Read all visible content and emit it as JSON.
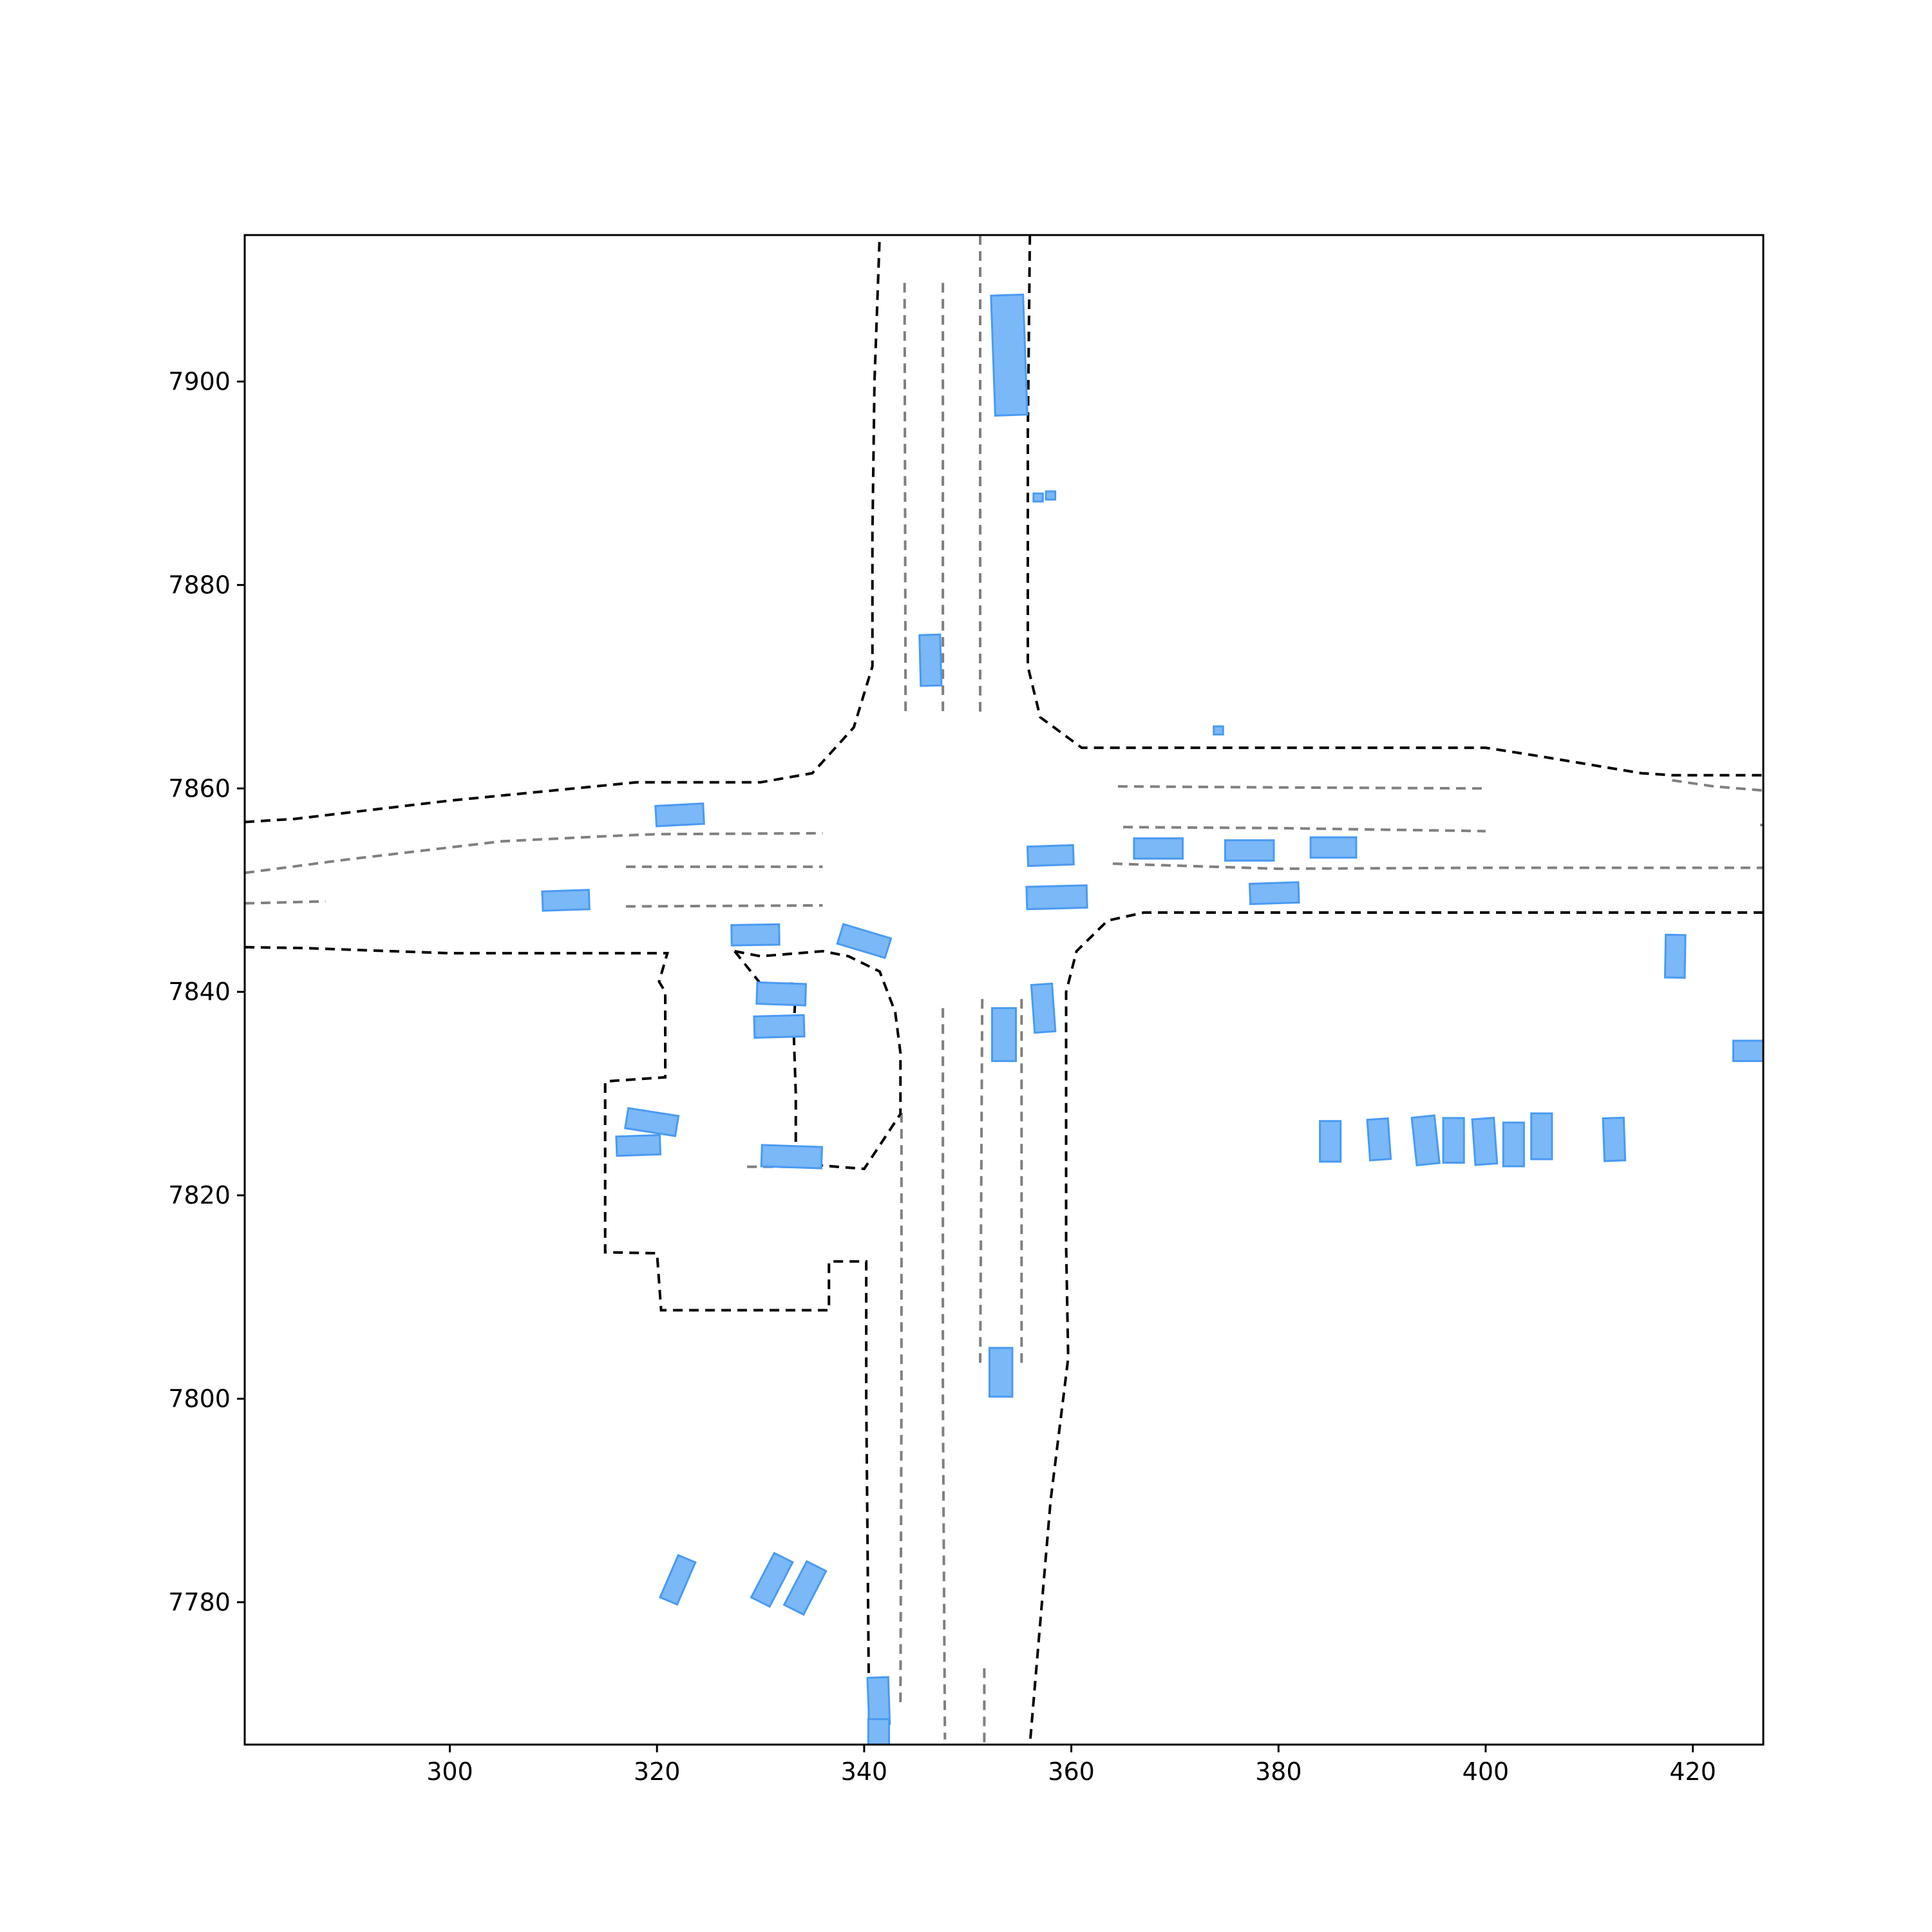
{
  "chart_data": {
    "type": "scatter",
    "title": "",
    "xlabel": "",
    "ylabel": "",
    "xlim": [
      280.2,
      426.8
    ],
    "ylim": [
      7766,
      7914.4
    ],
    "xticks": [
      300,
      320,
      340,
      360,
      380,
      400,
      420
    ],
    "yticks": [
      7780,
      7800,
      7820,
      7840,
      7860,
      7880,
      7900
    ],
    "xtick_labels": [
      "300",
      "320",
      "340",
      "360",
      "380",
      "400",
      "420"
    ],
    "ytick_labels": [
      "7780",
      "7800",
      "7820",
      "7840",
      "7860",
      "7880",
      "7900"
    ],
    "grid": false,
    "colors": {
      "road_edge": "#000000",
      "lane_divider": "#808080",
      "vehicle_fill": "#7ab8f7",
      "vehicle_stroke": "#4a9af2"
    },
    "road_edges": [
      [
        [
          280.2,
          7856.7
        ],
        [
          285,
          7857
        ],
        [
          300,
          7858.8
        ],
        [
          318,
          7860.6
        ],
        [
          330,
          7860.6
        ],
        [
          335,
          7861.5
        ],
        [
          339,
          7866
        ],
        [
          340.8,
          7872
        ],
        [
          340.8,
          7885
        ],
        [
          341,
          7900
        ],
        [
          341.5,
          7914.4
        ]
      ],
      [
        [
          356,
          7914.4
        ],
        [
          355.8,
          7895
        ],
        [
          355.8,
          7872
        ],
        [
          357,
          7867
        ],
        [
          361,
          7864
        ],
        [
          365,
          7864
        ],
        [
          380,
          7864
        ],
        [
          400,
          7864
        ],
        [
          405,
          7863.2
        ],
        [
          415,
          7861.5
        ],
        [
          418,
          7861.3
        ],
        [
          426.8,
          7861.3
        ]
      ],
      [
        [
          426.8,
          7847.8
        ],
        [
          400,
          7847.8
        ],
        [
          380,
          7847.8
        ],
        [
          367,
          7847.8
        ],
        [
          363.5,
          7847
        ],
        [
          360.5,
          7844
        ],
        [
          359.5,
          7840
        ],
        [
          359.5,
          7830
        ],
        [
          359.5,
          7815
        ],
        [
          359.7,
          7804
        ],
        [
          358,
          7790
        ],
        [
          356,
          7766
        ]
      ],
      [
        [
          280.2,
          7844.4
        ],
        [
          286,
          7844.3
        ],
        [
          300,
          7843.8
        ],
        [
          320,
          7843.8
        ],
        [
          321,
          7843.8
        ],
        [
          320.2,
          7841
        ],
        [
          320.8,
          7840
        ],
        [
          320.8,
          7836
        ],
        [
          320.8,
          7831.6
        ],
        [
          315,
          7831.2
        ],
        [
          315,
          7820
        ],
        [
          315,
          7814.4
        ],
        [
          320,
          7814.3
        ],
        [
          320.4,
          7808.7
        ],
        [
          330,
          7808.7
        ],
        [
          336.6,
          7808.7
        ],
        [
          336.6,
          7813.5
        ],
        [
          340.2,
          7813.5
        ],
        [
          340.2,
          7800
        ],
        [
          340.5,
          7766
        ]
      ],
      [
        [
          327.5,
          7844
        ],
        [
          330,
          7843.5
        ],
        [
          336,
          7844
        ],
        [
          338.5,
          7843.5
        ],
        [
          341.5,
          7842
        ],
        [
          343,
          7838
        ],
        [
          343.5,
          7834
        ],
        [
          343.5,
          7828
        ],
        [
          340,
          7822.6
        ],
        [
          335,
          7823
        ],
        [
          333.4,
          7823.2
        ],
        [
          333.4,
          7830
        ],
        [
          333.2,
          7836
        ],
        [
          333.4,
          7840.8
        ],
        [
          330,
          7840.8
        ],
        [
          327.5,
          7844
        ]
      ]
    ],
    "lane_dividers": [
      [
        [
          280.2,
          7851.7
        ],
        [
          290,
          7853
        ],
        [
          305,
          7854.8
        ],
        [
          315,
          7855.3
        ],
        [
          320,
          7855.5
        ],
        [
          336,
          7855.6
        ]
      ],
      [
        [
          280.2,
          7848.7
        ],
        [
          288,
          7848.9
        ]
      ],
      [
        [
          317,
          7852.3
        ],
        [
          336,
          7852.3
        ]
      ],
      [
        [
          317,
          7848.4
        ],
        [
          336,
          7848.5
        ]
      ],
      [
        [
          343.9,
          7909.7
        ],
        [
          344,
          7867
        ]
      ],
      [
        [
          347.6,
          7909.7
        ],
        [
          347.6,
          7867
        ]
      ],
      [
        [
          351.2,
          7914.4
        ],
        [
          351.2,
          7867
        ]
      ],
      [
        [
          364.5,
          7860.2
        ],
        [
          380,
          7860.1
        ],
        [
          400,
          7860
        ]
      ],
      [
        [
          365,
          7856.2
        ],
        [
          380,
          7856.1
        ],
        [
          400,
          7855.8
        ]
      ],
      [
        [
          364,
          7852.6
        ],
        [
          380,
          7852.1
        ],
        [
          400,
          7852.2
        ],
        [
          426.8,
          7852.2
        ]
      ],
      [
        [
          418,
          7860.8
        ],
        [
          422,
          7860.2
        ],
        [
          426.8,
          7859.8
        ]
      ],
      [
        [
          426.5,
          7856.4
        ],
        [
          426.8,
          7856.4
        ]
      ],
      [
        [
          347.6,
          7838.4
        ],
        [
          347.6,
          7800
        ],
        [
          347.8,
          7766.5
        ]
      ],
      [
        [
          351.4,
          7839.3
        ],
        [
          351.3,
          7820
        ],
        [
          351.2,
          7803
        ]
      ],
      [
        [
          355.2,
          7839.3
        ],
        [
          355.2,
          7820
        ],
        [
          355.2,
          7803.5
        ]
      ],
      [
        [
          343.6,
          7828.1
        ],
        [
          343.6,
          7800
        ],
        [
          343.5,
          7769.8
        ]
      ],
      [
        [
          351.6,
          7773.5
        ],
        [
          351.6,
          7766
        ]
      ],
      [
        [
          328.7,
          7822.8
        ],
        [
          333.5,
          7822.8
        ]
      ]
    ],
    "vehicles": [
      {
        "x": 354,
        "y": 7902.6,
        "length": 11.8,
        "width": 3.1,
        "heading": 92
      },
      {
        "x": 356.8,
        "y": 7888.6,
        "length": 0.9,
        "width": 0.8,
        "heading": 0
      },
      {
        "x": 358,
        "y": 7888.8,
        "length": 0.9,
        "width": 0.8,
        "heading": 0
      },
      {
        "x": 346.4,
        "y": 7872.6,
        "length": 5,
        "width": 2,
        "heading": 91.5
      },
      {
        "x": 374.2,
        "y": 7865.7,
        "length": 0.9,
        "width": 0.8,
        "heading": 0
      },
      {
        "x": 322.2,
        "y": 7857.4,
        "length": 4.6,
        "width": 2,
        "heading": 3
      },
      {
        "x": 358,
        "y": 7853.4,
        "length": 4.4,
        "width": 1.9,
        "heading": 2
      },
      {
        "x": 368.4,
        "y": 7854.1,
        "length": 4.7,
        "width": 2,
        "heading": 0
      },
      {
        "x": 377.2,
        "y": 7853.9,
        "length": 4.7,
        "width": 2,
        "heading": 0
      },
      {
        "x": 385.3,
        "y": 7854.2,
        "length": 4.4,
        "width": 2,
        "heading": 0
      },
      {
        "x": 358.6,
        "y": 7849.3,
        "length": 5.8,
        "width": 2.2,
        "heading": 1.5
      },
      {
        "x": 379.6,
        "y": 7849.7,
        "length": 4.7,
        "width": 2,
        "heading": 2
      },
      {
        "x": 311.2,
        "y": 7849,
        "length": 4.5,
        "width": 1.9,
        "heading": 2
      },
      {
        "x": 329.5,
        "y": 7845.6,
        "length": 4.6,
        "width": 2,
        "heading": 1
      },
      {
        "x": 340,
        "y": 7845,
        "length": 4.8,
        "width": 2,
        "heading": -17
      },
      {
        "x": 332,
        "y": 7839.8,
        "length": 4.7,
        "width": 2.1,
        "heading": -2
      },
      {
        "x": 331.8,
        "y": 7836.6,
        "length": 4.8,
        "width": 2.1,
        "heading": 1.5
      },
      {
        "x": 353.5,
        "y": 7835.8,
        "length": 5.2,
        "width": 2.3,
        "heading": 90
      },
      {
        "x": 357.3,
        "y": 7838.4,
        "length": 4.7,
        "width": 2,
        "heading": 94
      },
      {
        "x": 418.3,
        "y": 7843.5,
        "length": 4.2,
        "width": 1.9,
        "heading": 89
      },
      {
        "x": 426,
        "y": 7834.2,
        "length": 4.2,
        "width": 2,
        "heading": 0
      },
      {
        "x": 319.5,
        "y": 7827.2,
        "length": 4.9,
        "width": 2,
        "heading": -9
      },
      {
        "x": 318.2,
        "y": 7824.9,
        "length": 4.2,
        "width": 1.9,
        "heading": 2
      },
      {
        "x": 333,
        "y": 7823.8,
        "length": 5.8,
        "width": 2.1,
        "heading": -2
      },
      {
        "x": 385,
        "y": 7825.3,
        "length": 4,
        "width": 2,
        "heading": 90
      },
      {
        "x": 389.7,
        "y": 7825.5,
        "length": 4,
        "width": 2,
        "heading": 94
      },
      {
        "x": 394.2,
        "y": 7825.4,
        "length": 4.7,
        "width": 2.2,
        "heading": 96
      },
      {
        "x": 396.9,
        "y": 7825.4,
        "length": 4.4,
        "width": 2,
        "heading": 90
      },
      {
        "x": 399.9,
        "y": 7825.3,
        "length": 4.5,
        "width": 2.1,
        "heading": 94
      },
      {
        "x": 402.7,
        "y": 7825,
        "length": 4.3,
        "width": 2,
        "heading": 90
      },
      {
        "x": 405.4,
        "y": 7825.8,
        "length": 4.5,
        "width": 2,
        "heading": 90
      },
      {
        "x": 412.4,
        "y": 7825.5,
        "length": 4.2,
        "width": 2,
        "heading": 92
      },
      {
        "x": 353.2,
        "y": 7802.6,
        "length": 4.8,
        "width": 2.2,
        "heading": 90
      },
      {
        "x": 322,
        "y": 7782.2,
        "length": 4.5,
        "width": 1.8,
        "heading": 67
      },
      {
        "x": 331.1,
        "y": 7782.2,
        "length": 4.9,
        "width": 2,
        "heading": 63
      },
      {
        "x": 334.3,
        "y": 7781.4,
        "length": 4.8,
        "width": 2.1,
        "heading": 63
      },
      {
        "x": 341.4,
        "y": 7770.3,
        "length": 4.6,
        "width": 2,
        "heading": 92
      },
      {
        "x": 341.4,
        "y": 7767,
        "length": 3,
        "width": 2,
        "heading": 90
      }
    ]
  }
}
